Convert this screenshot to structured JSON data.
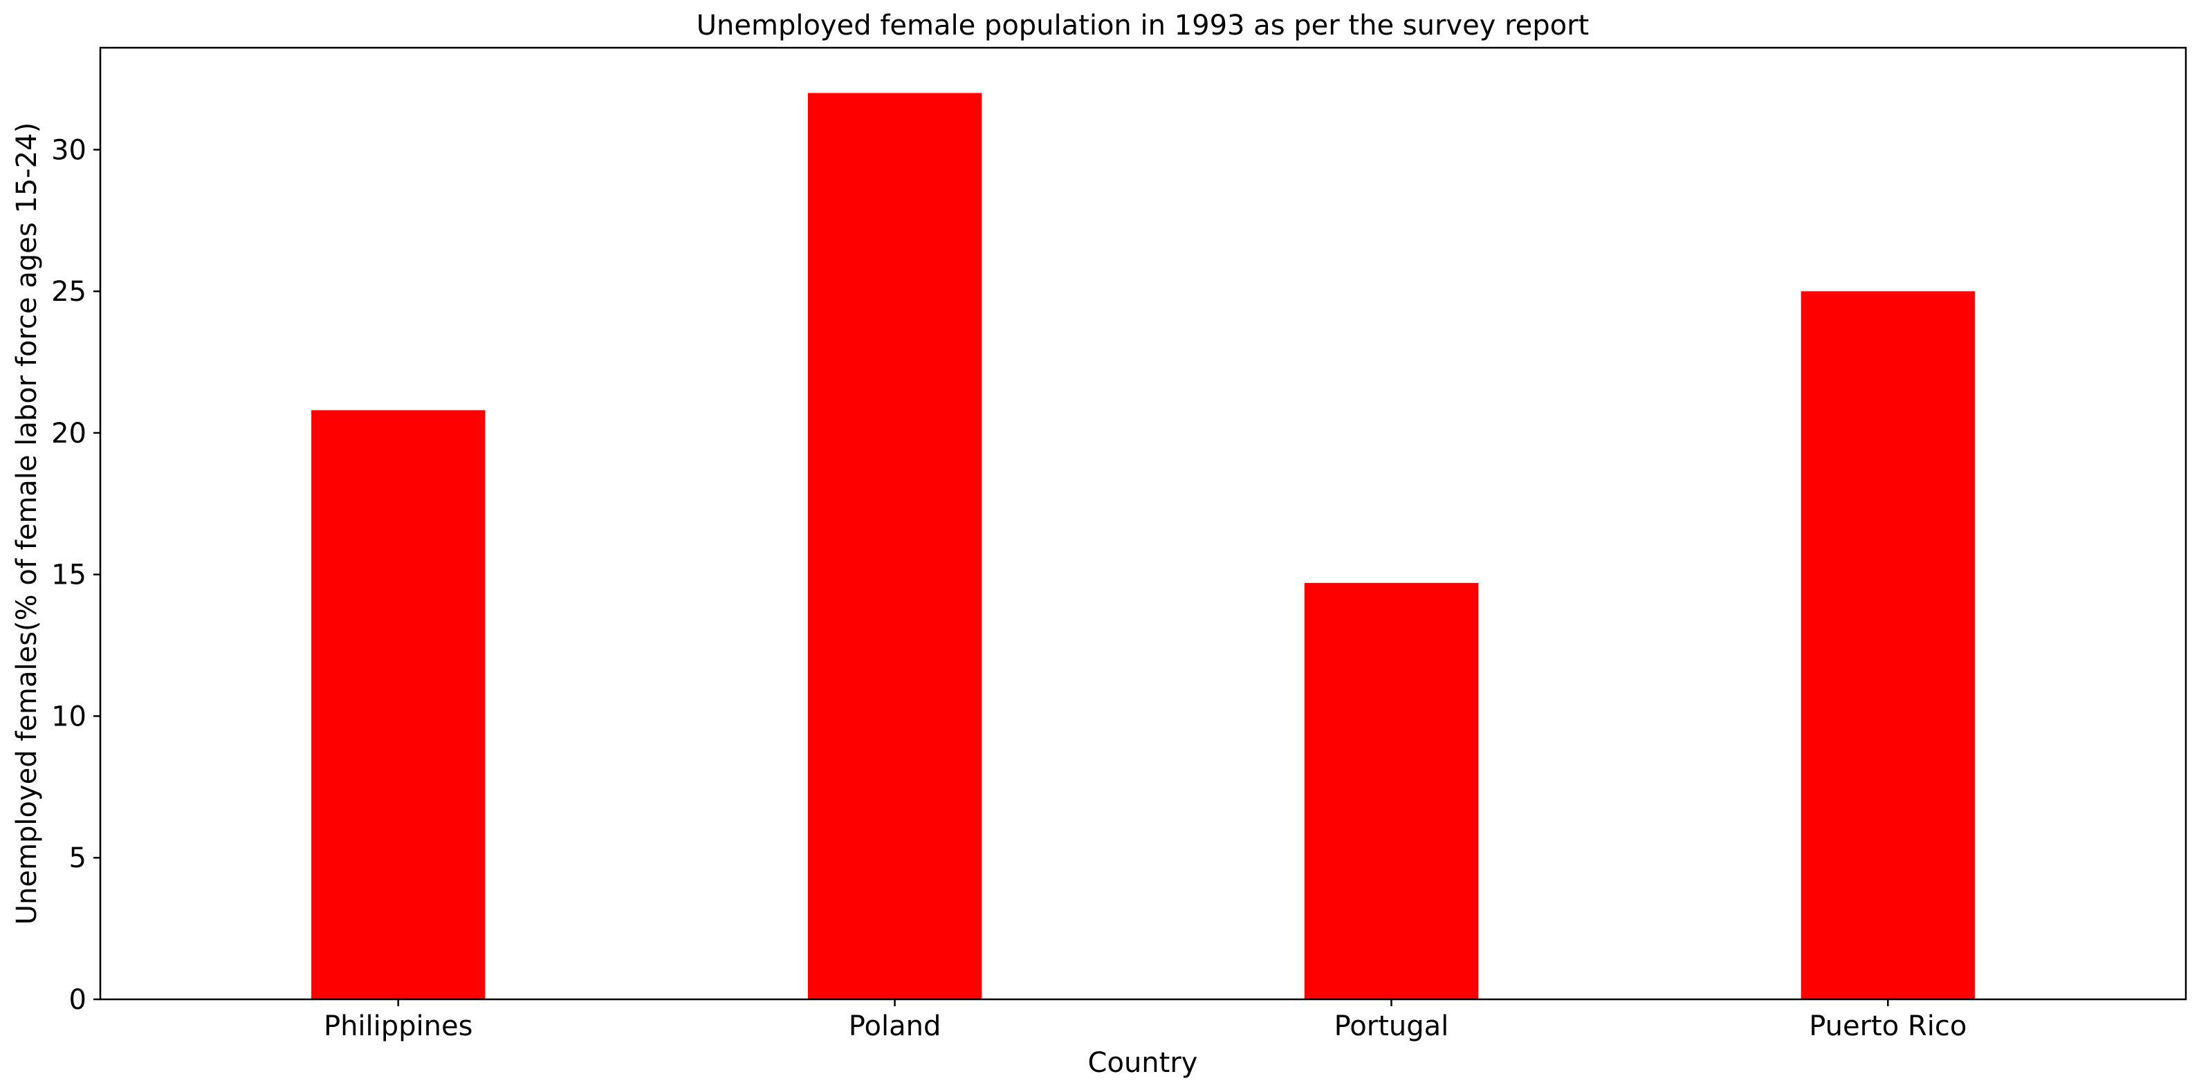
{
  "chart_data": {
    "type": "bar",
    "title": "Unemployed female population in 1993 as per the survey report",
    "xlabel": "Country",
    "ylabel": "Unemployed females(% of female labor force ages 15-24)",
    "categories": [
      "Philippines",
      "Poland",
      "Portugal",
      "Puerto Rico"
    ],
    "values": [
      20.8,
      32.0,
      14.7,
      25.0
    ],
    "ylim": [
      0,
      33.6
    ],
    "yticks": [
      0,
      5,
      10,
      15,
      20,
      25,
      30
    ],
    "bar_color": "#ff0000",
    "grid": false,
    "legend": "none"
  }
}
